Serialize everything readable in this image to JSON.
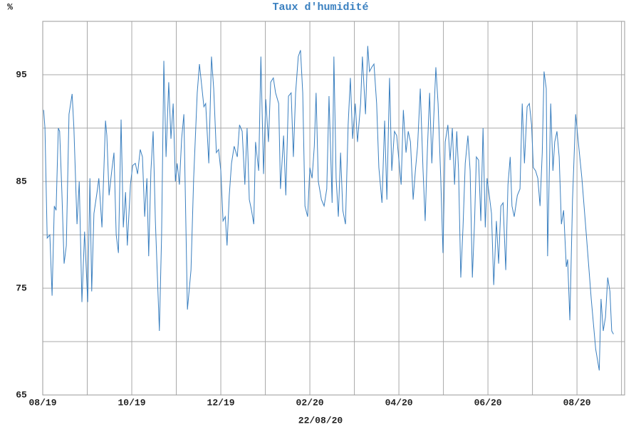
{
  "chart_data": {
    "type": "line",
    "title": "Taux d'humidité",
    "ylabel": "%",
    "xlabel": "22/08/20",
    "color": "#3a7fbf",
    "grid": true,
    "xlim": [
      0,
      13.07
    ],
    "ylim": [
      65,
      100
    ],
    "xticks": [
      {
        "value": 0,
        "label": "08/19"
      },
      {
        "value": 2,
        "label": "10/19"
      },
      {
        "value": 4,
        "label": "12/19"
      },
      {
        "value": 6,
        "label": "02/20"
      },
      {
        "value": 8,
        "label": "04/20"
      },
      {
        "value": 10,
        "label": "06/20"
      },
      {
        "value": 12,
        "label": "08/20"
      }
    ],
    "minor_xticks": [
      1,
      3,
      5,
      7,
      9,
      11,
      13
    ],
    "yticks": [
      65,
      75,
      85,
      95
    ],
    "minor_yticks": [
      70,
      80,
      90,
      100
    ],
    "x": [
      0.02,
      0.05,
      0.1,
      0.16,
      0.21,
      0.26,
      0.3,
      0.35,
      0.38,
      0.43,
      0.48,
      0.53,
      0.59,
      0.66,
      0.7,
      0.77,
      0.82,
      0.88,
      0.94,
      1.01,
      1.06,
      1.1,
      1.15,
      1.22,
      1.26,
      1.33,
      1.41,
      1.44,
      1.49,
      1.55,
      1.6,
      1.65,
      1.7,
      1.76,
      1.81,
      1.86,
      1.9,
      1.97,
      2.02,
      2.08,
      2.13,
      2.19,
      2.24,
      2.29,
      2.34,
      2.38,
      2.43,
      2.48,
      2.53,
      2.62,
      2.67,
      2.72,
      2.77,
      2.83,
      2.88,
      2.93,
      2.98,
      3.02,
      3.07,
      3.12,
      3.17,
      3.25,
      3.33,
      3.39,
      3.47,
      3.52,
      3.57,
      3.62,
      3.66,
      3.73,
      3.79,
      3.84,
      3.9,
      3.95,
      4,
      4.05,
      4.1,
      4.14,
      4.19,
      4.24,
      4.3,
      4.37,
      4.42,
      4.48,
      4.54,
      4.59,
      4.64,
      4.69,
      4.74,
      4.78,
      4.85,
      4.9,
      4.96,
      5.01,
      5.07,
      5.12,
      5.18,
      5.23,
      5.3,
      5.34,
      5.41,
      5.46,
      5.52,
      5.58,
      5.63,
      5.68,
      5.74,
      5.79,
      5.84,
      5.89,
      5.95,
      6,
      6.05,
      6.1,
      6.14,
      6.19,
      6.26,
      6.32,
      6.38,
      6.43,
      6.5,
      6.54,
      6.59,
      6.64,
      6.69,
      6.74,
      6.8,
      6.86,
      6.91,
      6.96,
      7.02,
      7.07,
      7.14,
      7.18,
      7.25,
      7.3,
      7.34,
      7.39,
      7.44,
      7.5,
      7.55,
      7.62,
      7.68,
      7.73,
      7.79,
      7.84,
      7.9,
      7.95,
      8,
      8.05,
      8.1,
      8.16,
      8.21,
      8.26,
      8.32,
      8.37,
      8.42,
      8.48,
      8.54,
      8.59,
      8.64,
      8.69,
      8.74,
      8.78,
      8.83,
      8.88,
      8.94,
      8.99,
      9.04,
      9.1,
      9.15,
      9.2,
      9.25,
      9.3,
      9.34,
      9.39,
      9.44,
      9.49,
      9.55,
      9.6,
      9.65,
      9.7,
      9.74,
      9.79,
      9.84,
      9.89,
      9.94,
      9.98,
      10.03,
      10.08,
      10.13,
      10.19,
      10.24,
      10.29,
      10.34,
      10.4,
      10.45,
      10.5,
      10.54,
      10.59,
      10.66,
      10.72,
      10.77,
      10.82,
      10.88,
      10.93,
      10.98,
      11.02,
      11.07,
      11.12,
      11.17,
      11.22,
      11.26,
      11.31,
      11.34,
      11.41,
      11.46,
      11.5,
      11.55,
      11.6,
      11.65,
      11.7,
      11.76,
      11.79,
      11.84,
      11.9,
      11.97,
      12.03,
      12.11,
      12.21,
      12.32,
      12.42,
      12.5,
      12.54,
      12.59,
      12.64,
      12.69,
      12.74,
      12.78,
      12.82
    ],
    "values": [
      91.7,
      90,
      79.7,
      80,
      74.3,
      82.7,
      82.3,
      90,
      89.7,
      84,
      77.3,
      79,
      91.3,
      93.2,
      90,
      81,
      85,
      73.7,
      80.3,
      73.7,
      85.3,
      74.7,
      82,
      84,
      85.3,
      80.7,
      90.7,
      89.3,
      83.7,
      86,
      87.7,
      80,
      78.3,
      90.8,
      80.7,
      84,
      79,
      84.7,
      86.5,
      86.7,
      85.7,
      88,
      87.3,
      81.7,
      85.3,
      78,
      86,
      89.7,
      81.3,
      71,
      80,
      96.3,
      87.3,
      94.3,
      89,
      92.3,
      85,
      86.7,
      84.7,
      89,
      91.3,
      73,
      76.7,
      85.3,
      93.3,
      96,
      94,
      92,
      92.3,
      86.7,
      96.7,
      93.7,
      87.7,
      88,
      86,
      81.3,
      81.7,
      79,
      83.7,
      86.7,
      88.3,
      87.3,
      90.3,
      89.7,
      84.7,
      90,
      83.3,
      82.3,
      81,
      88.7,
      86,
      96.7,
      85.7,
      92.7,
      88.7,
      94.3,
      94.7,
      93.3,
      92.3,
      84.3,
      89.3,
      83.7,
      93,
      93.3,
      87.3,
      93.3,
      96.7,
      97.3,
      93.3,
      82.7,
      81.7,
      86.3,
      85.3,
      88.3,
      93.3,
      85,
      83.3,
      82.7,
      84.3,
      93,
      83,
      96.7,
      85.3,
      81.7,
      87.7,
      82.3,
      81,
      90.3,
      94.7,
      89,
      92.3,
      88.7,
      92.3,
      96.7,
      91.3,
      97.7,
      95.3,
      95.7,
      96,
      92.3,
      86.3,
      83,
      90.7,
      83.3,
      94.7,
      86,
      89.7,
      89.3,
      87,
      84.7,
      91.7,
      87.7,
      89.7,
      88.7,
      83.3,
      86,
      88.3,
      93.7,
      86.3,
      81.3,
      88,
      93.3,
      86.7,
      90.7,
      95.7,
      92.3,
      85.3,
      78.3,
      88.7,
      90.3,
      87,
      90,
      84.7,
      89.7,
      86,
      76,
      80.7,
      86.7,
      89.3,
      86,
      76,
      81.3,
      87.3,
      87,
      81.3,
      90,
      80.7,
      85.3,
      83.7,
      82,
      75.3,
      81.3,
      77.3,
      82.7,
      83,
      76.7,
      84.7,
      87.3,
      82.7,
      81.7,
      83.7,
      84.3,
      92.3,
      86.7,
      92,
      92.3,
      90.3,
      86.3,
      86,
      85.3,
      82.7,
      87.7,
      95.3,
      93.7,
      78,
      92.3,
      86,
      88.7,
      89.7,
      87.3,
      81,
      82.3,
      77,
      77.7,
      72,
      83.3,
      91.3,
      88.7,
      85.3,
      80,
      74,
      69.3,
      67.3,
      74,
      71,
      72.3,
      76,
      74.7,
      71,
      70.7
    ]
  }
}
